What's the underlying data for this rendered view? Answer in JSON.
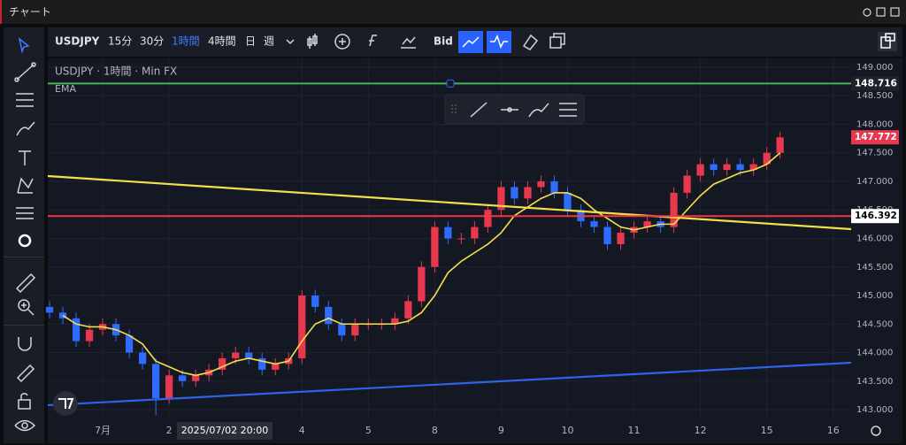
{
  "window": {
    "title": "チャート"
  },
  "toolbar": {
    "symbol": "USDJPY",
    "intervals": [
      "15分",
      "30分",
      "1時間",
      "4時間",
      "日",
      "週"
    ],
    "active_interval": 2,
    "price_type": "Bid"
  },
  "chart_data": {
    "type": "candlestick",
    "title": "USDJPY · 1時間 · Min FX",
    "x": [
      -0.8,
      -0.6,
      -0.4,
      -0.2,
      0,
      0.2,
      0.4,
      0.6,
      0.8,
      1,
      1.2,
      1.4,
      1.6,
      1.8,
      2,
      2.2,
      2.4,
      2.6,
      2.8,
      3,
      3.2,
      3.4,
      3.6,
      3.8,
      4,
      4.2,
      4.4,
      4.6,
      4.8,
      5,
      5.2,
      5.4,
      5.6,
      5.8,
      6,
      6.2,
      6.4,
      6.6,
      6.8,
      7,
      7.2,
      7.4,
      7.6,
      7.8,
      8,
      8.2,
      8.4,
      8.6,
      8.8,
      9,
      9.2,
      9.4,
      9.6,
      9.8,
      10,
      10.2
    ],
    "open": [
      144.8,
      144.7,
      144.6,
      144.2,
      144.4,
      144.5,
      144.3,
      144.0,
      143.8,
      143.2,
      143.6,
      143.5,
      143.6,
      143.7,
      143.9,
      144.0,
      143.9,
      143.7,
      143.8,
      143.9,
      145.0,
      144.8,
      144.5,
      144.3,
      144.5,
      144.5,
      144.5,
      144.6,
      144.9,
      145.5,
      146.2,
      146.0,
      146.0,
      146.2,
      146.5,
      146.9,
      146.7,
      146.9,
      147.0,
      146.8,
      146.5,
      146.3,
      146.2,
      145.9,
      146.1,
      146.2,
      146.3,
      146.2,
      146.8,
      147.1,
      147.3,
      147.2,
      147.3,
      147.2,
      147.3,
      147.5
    ],
    "high": [
      144.9,
      144.8,
      144.7,
      144.5,
      144.6,
      144.6,
      144.4,
      144.1,
      143.9,
      143.7,
      143.7,
      143.7,
      143.8,
      144.0,
      144.1,
      144.1,
      144.0,
      143.9,
      144.0,
      145.1,
      145.1,
      144.9,
      144.6,
      144.6,
      144.6,
      144.6,
      144.7,
      145.0,
      145.6,
      146.3,
      146.3,
      146.1,
      146.3,
      146.6,
      147.0,
      147.0,
      147.0,
      147.1,
      147.1,
      146.9,
      146.6,
      146.4,
      146.3,
      146.2,
      146.3,
      146.4,
      146.4,
      146.9,
      147.2,
      147.4,
      147.4,
      147.4,
      147.4,
      147.4,
      147.6,
      147.87
    ],
    "low": [
      144.6,
      144.5,
      144.1,
      144.1,
      144.3,
      144.2,
      143.9,
      143.7,
      142.9,
      143.1,
      143.4,
      143.4,
      143.5,
      143.6,
      143.8,
      143.8,
      143.6,
      143.6,
      143.7,
      143.8,
      144.7,
      144.4,
      144.2,
      144.2,
      144.4,
      144.4,
      144.4,
      144.5,
      144.8,
      145.4,
      145.9,
      145.9,
      145.9,
      146.1,
      146.4,
      146.6,
      146.6,
      146.8,
      146.7,
      146.4,
      146.2,
      146.1,
      145.8,
      145.8,
      146.0,
      146.1,
      146.1,
      146.1,
      146.7,
      147.0,
      147.1,
      147.1,
      147.1,
      147.1,
      147.2,
      147.4
    ],
    "close": [
      144.7,
      144.6,
      144.2,
      144.4,
      144.5,
      144.3,
      144.0,
      143.8,
      143.2,
      143.6,
      143.5,
      143.6,
      143.7,
      143.9,
      144.0,
      143.9,
      143.7,
      143.8,
      143.9,
      145.0,
      144.8,
      144.5,
      144.3,
      144.5,
      144.5,
      144.5,
      144.6,
      144.9,
      145.5,
      146.2,
      146.0,
      146.0,
      146.2,
      146.5,
      146.9,
      146.7,
      146.9,
      147.0,
      146.8,
      146.5,
      146.3,
      146.2,
      145.9,
      146.1,
      146.2,
      146.3,
      146.2,
      146.8,
      147.1,
      147.3,
      147.2,
      147.3,
      147.2,
      147.3,
      147.5,
      147.772
    ],
    "up_color": "#e8384f",
    "down_color": "#2f6bff",
    "ema": {
      "name": "EMA",
      "color": "#f5e04a",
      "values": [
        null,
        144.65,
        144.5,
        144.45,
        144.45,
        144.4,
        144.3,
        144.15,
        143.85,
        143.75,
        143.65,
        143.6,
        143.65,
        143.75,
        143.85,
        143.9,
        143.85,
        143.8,
        143.85,
        144.2,
        144.5,
        144.6,
        144.5,
        144.5,
        144.5,
        144.5,
        144.5,
        144.55,
        144.7,
        145.0,
        145.4,
        145.6,
        145.75,
        145.9,
        146.1,
        146.4,
        146.55,
        146.7,
        146.8,
        146.8,
        146.7,
        146.5,
        146.35,
        146.2,
        146.15,
        146.2,
        146.25,
        146.25,
        146.5,
        146.75,
        146.95,
        147.05,
        147.15,
        147.2,
        147.3,
        147.5
      ]
    },
    "horizontal_lines": [
      {
        "value": 148.716,
        "color": "#4caf50"
      },
      {
        "value": 146.392,
        "color": "#f23645"
      }
    ],
    "trend_lines": [
      {
        "color": "#f5e04a",
        "x": [
          -0.827,
          11.27
        ],
        "values": [
          147.093,
          146.163
        ]
      },
      {
        "color": "#2f62e6",
        "x": [
          -0.827,
          11.27
        ],
        "values": [
          143.078,
          143.822
        ]
      }
    ],
    "last_price": {
      "value": 147.772,
      "color": "#e8384f"
    },
    "crosshair_label": "2025/07/02  20:00",
    "xlim": [
      -0.827,
      11.27
    ],
    "xticks": [
      {
        "value": 0,
        "label": "7月"
      },
      {
        "value": 1,
        "label": "2"
      },
      {
        "value": 3,
        "label": "4"
      },
      {
        "value": 4,
        "label": "5"
      },
      {
        "value": 5,
        "label": "8"
      },
      {
        "value": 6,
        "label": "9"
      },
      {
        "value": 7,
        "label": "10"
      },
      {
        "value": 8,
        "label": "11"
      },
      {
        "value": 9,
        "label": "12"
      },
      {
        "value": 10,
        "label": "15"
      },
      {
        "value": 11,
        "label": "16"
      }
    ],
    "ylim": [
      142.814,
      149.155
    ],
    "yticks": [
      {
        "value": 143,
        "label": "143.000"
      },
      {
        "value": 143.5,
        "label": "143.500"
      },
      {
        "value": 144,
        "label": "144.000"
      },
      {
        "value": 144.5,
        "label": "144.500"
      },
      {
        "value": 145,
        "label": "145.000"
      },
      {
        "value": 145.5,
        "label": "145.500"
      },
      {
        "value": 146,
        "label": "146.000"
      },
      {
        "value": 146.5,
        "label": "146.500"
      },
      {
        "value": 147,
        "label": "147.000"
      },
      {
        "value": 147.5,
        "label": "147.500"
      },
      {
        "value": 148,
        "label": "148.000"
      },
      {
        "value": 148.5,
        "label": "148.500"
      },
      {
        "value": 149,
        "label": "149.000"
      }
    ],
    "grid": true
  }
}
